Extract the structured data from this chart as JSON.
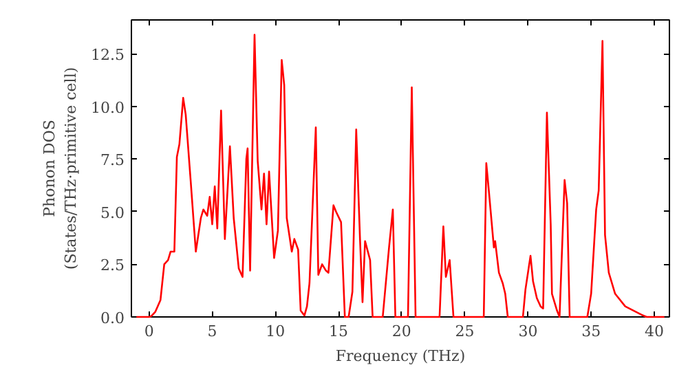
{
  "chart_data": {
    "type": "line",
    "xlabel": "Frequency (THz)",
    "ylabel": "Phonon DOS\n(States/THz·primitive cell)",
    "grid": false,
    "marker": "none",
    "line_style": "solid",
    "xlim": [
      -1.4,
      41.2
    ],
    "ylim": [
      0,
      14.1
    ],
    "xticks": [
      0,
      5,
      10,
      15,
      20,
      25,
      30,
      35,
      40
    ],
    "yticks": [
      {
        "value": 0,
        "label": "0.0"
      },
      {
        "value": 2.5,
        "label": "2.5"
      },
      {
        "value": 5,
        "label": "5.0"
      },
      {
        "value": 7.5,
        "label": "7.5"
      },
      {
        "value": 10,
        "label": "10.0"
      },
      {
        "value": 12.5,
        "label": "12.5"
      }
    ],
    "series": [
      {
        "color": "#ff0000",
        "x": [
          -1.0,
          0,
          0.2,
          0.5,
          0.9,
          1.2,
          1.5,
          1.7,
          2.0,
          2.2,
          2.4,
          2.7,
          2.9,
          3.3,
          3.7,
          4.1,
          4.3,
          4.6,
          4.8,
          5.0,
          5.2,
          5.4,
          5.7,
          6.0,
          6.4,
          6.7,
          7.1,
          7.4,
          7.7,
          7.8,
          8.0,
          8.35,
          8.6,
          8.9,
          9.1,
          9.3,
          9.5,
          9.9,
          10.2,
          10.5,
          10.7,
          10.9,
          11.3,
          11.5,
          11.8,
          12.0,
          12.3,
          12.5,
          12.7,
          13.2,
          13.4,
          13.7,
          14.0,
          14.2,
          14.6,
          14.8,
          15.2,
          15.5,
          15.8,
          16.1,
          16.4,
          16.7,
          16.9,
          17.1,
          17.5,
          17.7,
          18.5,
          19.0,
          19.3,
          19.5,
          20.5,
          20.8,
          21.1,
          23.0,
          23.3,
          23.5,
          23.8,
          24.1,
          26.5,
          26.7,
          26.9,
          27.3,
          27.4,
          27.7,
          28.0,
          28.2,
          28.4,
          29.6,
          29.8,
          30.2,
          30.4,
          30.7,
          31.0,
          31.2,
          31.5,
          31.8,
          31.9,
          32.3,
          32.5,
          32.9,
          33.1,
          33.3,
          34.7,
          35.0,
          35.4,
          35.6,
          35.9,
          36.1,
          36.4,
          36.9,
          37.7,
          39.0,
          39.4,
          40.8
        ],
        "values": [
          0,
          0,
          0.05,
          0.25,
          0.8,
          2.5,
          2.7,
          3.1,
          3.1,
          7.6,
          8.2,
          10.4,
          9.6,
          6.4,
          3.1,
          4.7,
          5.1,
          4.8,
          5.7,
          4.4,
          6.2,
          4.2,
          9.8,
          3.7,
          8.1,
          4.7,
          2.3,
          1.9,
          7.5,
          8.0,
          2.2,
          13.4,
          7.4,
          5.1,
          6.8,
          4.4,
          6.9,
          2.8,
          4.1,
          12.2,
          11.0,
          4.7,
          3.1,
          3.7,
          3.2,
          0.3,
          0.07,
          0.5,
          1.6,
          9.0,
          2.0,
          2.5,
          2.2,
          2.1,
          5.3,
          5.0,
          4.5,
          0,
          0,
          1.2,
          8.9,
          3.7,
          0.7,
          3.6,
          2.7,
          0,
          0,
          3.3,
          5.1,
          0,
          0,
          10.9,
          0,
          0,
          4.3,
          1.9,
          2.7,
          0,
          0,
          7.3,
          6.0,
          3.3,
          3.6,
          2.1,
          1.6,
          1.1,
          0,
          0,
          1.3,
          2.9,
          1.7,
          0.9,
          0.5,
          0.4,
          9.7,
          4.4,
          1.1,
          0.3,
          0,
          6.5,
          5.4,
          0,
          0,
          1.1,
          5.1,
          6.0,
          13.1,
          3.9,
          2.1,
          1.1,
          0.5,
          0.1,
          0,
          0
        ]
      }
    ]
  }
}
